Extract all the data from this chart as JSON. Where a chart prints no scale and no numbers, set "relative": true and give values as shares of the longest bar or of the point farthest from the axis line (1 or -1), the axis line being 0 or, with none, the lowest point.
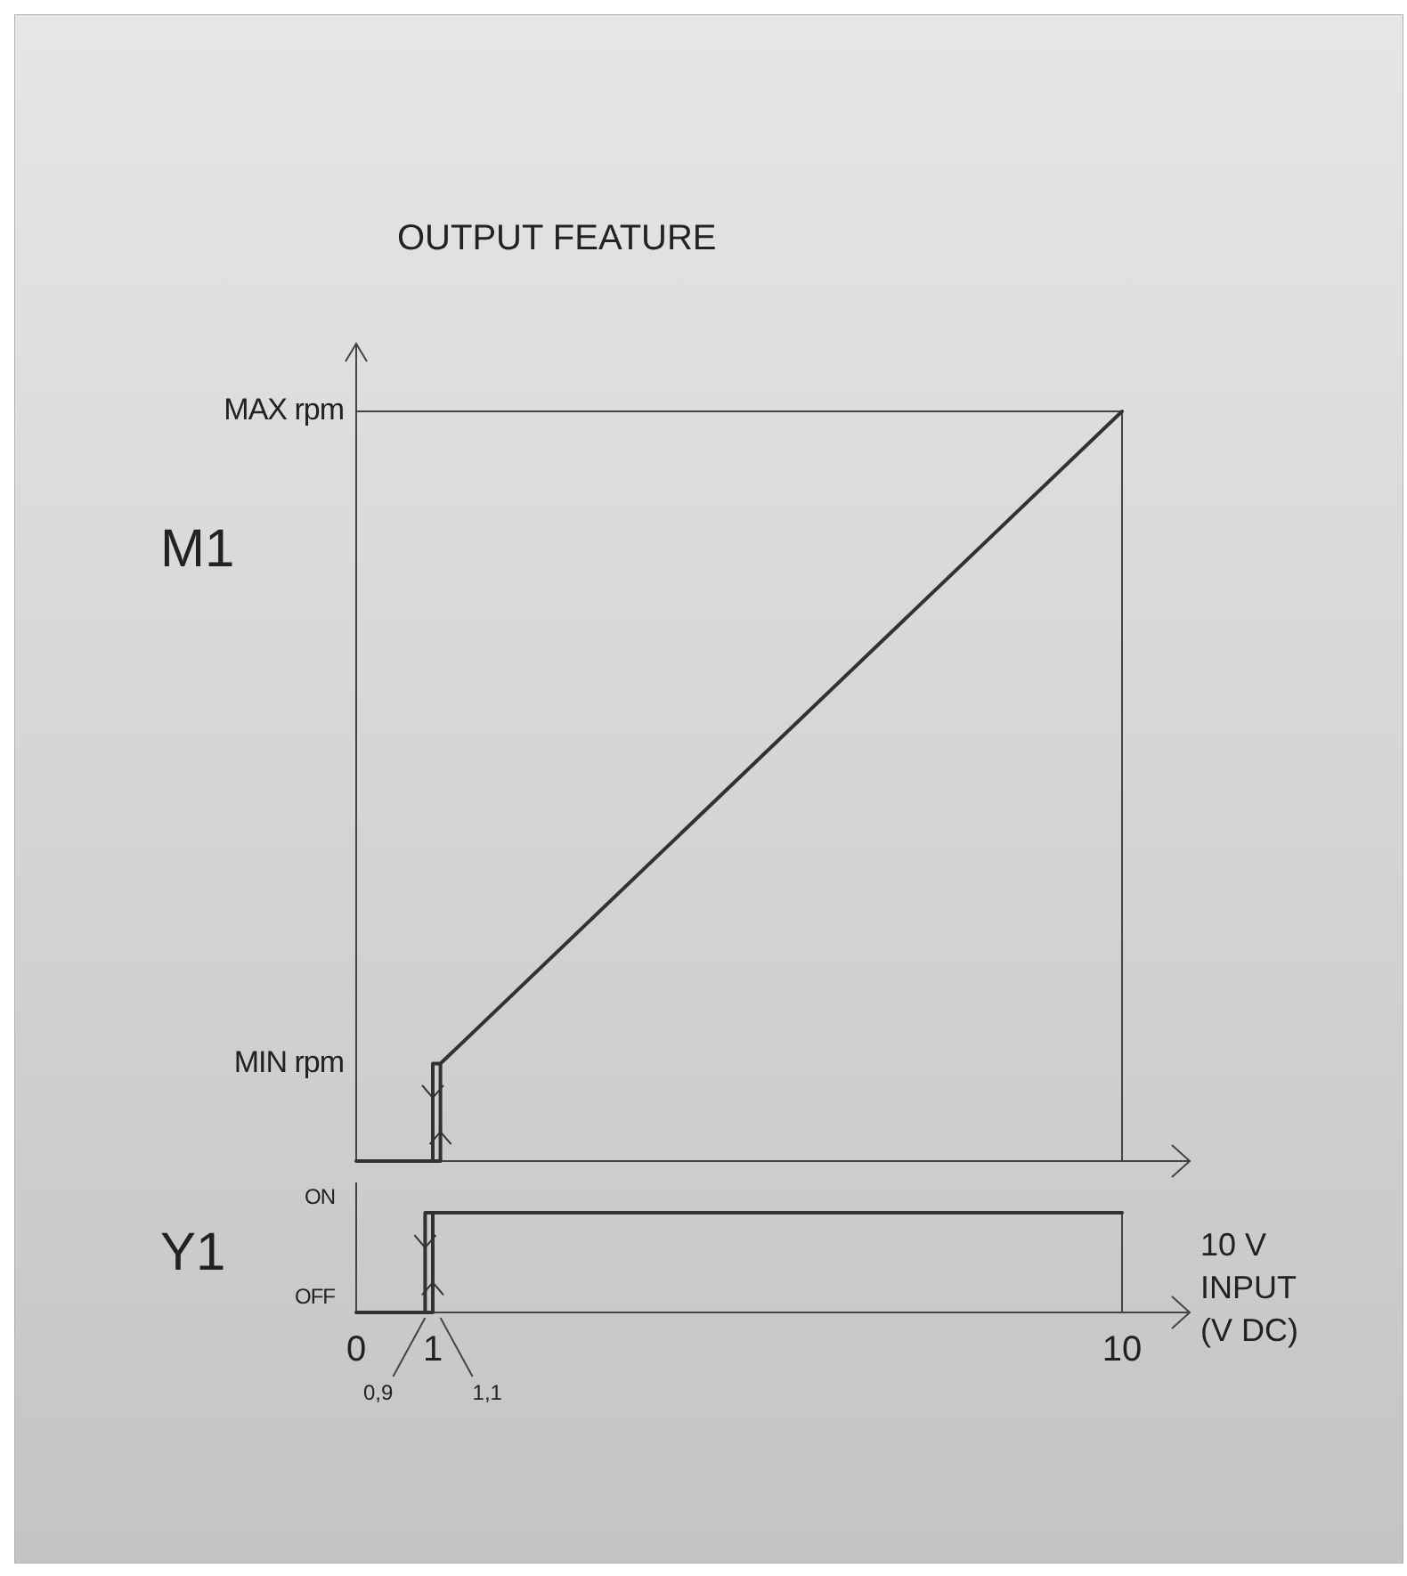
{
  "chart_data": [
    {
      "type": "line",
      "title": "OUTPUT FEATURE",
      "ylabel": "M1",
      "relative": true,
      "annotations": [
        "MIN rpm",
        "MAX rpm"
      ],
      "xlim": [
        0,
        10
      ],
      "tick_labels": false,
      "marker": "none",
      "line_style": "solid",
      "series": [
        {
          "color": "#2f3336",
          "x": [
            0,
            1.1,
            1.1,
            1,
            1,
            1.1,
            1.1,
            10
          ],
          "values": [
            0,
            0,
            0.13,
            0.13,
            0,
            0,
            0.13,
            1
          ]
        }
      ],
      "ref_lines": [
        {
          "axis": "x",
          "value": 10
        },
        {
          "axis": "y",
          "value": 1
        }
      ]
    },
    {
      "type": "line",
      "ylabel": "Y1",
      "xlabel": "INPUT (V DC)",
      "relative": true,
      "annotations": [
        "OFF",
        "ON",
        "10 V",
        {
          "text": "0,9",
          "x": 0.9,
          "y": 0
        },
        {
          "text": "1,1",
          "x": 1.1,
          "y": 0
        }
      ],
      "xlim": [
        0,
        10
      ],
      "xticks": [
        0,
        1,
        10
      ],
      "tick_labels": "x",
      "marker": "none",
      "line_style": "solid",
      "series": [
        {
          "color": "#2f3336",
          "x": [
            0,
            1,
            1,
            0.9,
            0.9,
            1,
            1,
            10
          ],
          "values": [
            0,
            0,
            1,
            1,
            0,
            0,
            1,
            1
          ]
        }
      ],
      "ref_lines": [
        {
          "axis": "x",
          "value": 10
        }
      ]
    }
  ]
}
